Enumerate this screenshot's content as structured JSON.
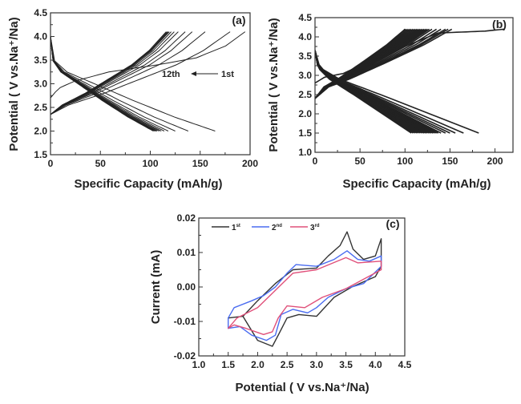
{
  "chart_data": [
    {
      "id": "a",
      "type": "line",
      "panel_label": "(a)",
      "xlabel": "Specific Capacity (mAh/g)",
      "ylabel": "Potential ( V vs.Na⁺/Na)",
      "xlim": [
        0,
        200
      ],
      "ylim": [
        1.5,
        4.5
      ],
      "xticks": [
        0,
        50,
        100,
        150,
        200
      ],
      "yticks": [
        1.5,
        2.0,
        2.5,
        3.0,
        3.5,
        4.0,
        4.5
      ],
      "ytick_format": 1,
      "annotation": {
        "from": "1st",
        "to": "12th"
      },
      "cycles": 12,
      "charge_end_capacity": [
        195,
        180,
        155,
        142,
        135,
        128,
        124,
        121,
        119,
        118,
        117,
        116
      ],
      "discharge_end_capacity": [
        165,
        138,
        125,
        118,
        114,
        111,
        109,
        107,
        106,
        105,
        104,
        103
      ],
      "charge_profile_first": [
        [
          0,
          2.7
        ],
        [
          0.04,
          2.9
        ],
        [
          0.12,
          3.05
        ],
        [
          0.3,
          3.25
        ],
        [
          0.55,
          3.4
        ],
        [
          0.75,
          3.55
        ],
        [
          0.9,
          3.8
        ],
        [
          1,
          4.1
        ]
      ],
      "charge_profile": [
        [
          0,
          2.35
        ],
        [
          0.1,
          2.55
        ],
        [
          0.3,
          2.8
        ],
        [
          0.5,
          3.1
        ],
        [
          0.7,
          3.4
        ],
        [
          0.85,
          3.7
        ],
        [
          1,
          4.1
        ]
      ],
      "discharge_profile": [
        [
          0,
          4.0
        ],
        [
          0.02,
          3.5
        ],
        [
          0.1,
          3.25
        ],
        [
          0.3,
          2.95
        ],
        [
          0.5,
          2.65
        ],
        [
          0.75,
          2.3
        ],
        [
          1,
          2.0
        ]
      ]
    },
    {
      "id": "b",
      "type": "line",
      "panel_label": "(b)",
      "xlabel": "Specific Capacity (mAh/g)",
      "ylabel": "Potential ( V vs.Na⁺/Na)",
      "xlim": [
        0,
        220
      ],
      "ylim": [
        1.0,
        4.5
      ],
      "xticks": [
        0,
        50,
        100,
        150,
        200
      ],
      "yticks": [
        1.0,
        1.5,
        2.0,
        2.5,
        3.0,
        3.5,
        4.0,
        4.5
      ],
      "ytick_format": 1,
      "charge_end_capacity": [
        210,
        152,
        148,
        145,
        140,
        135,
        130,
        127,
        125,
        123,
        121,
        119,
        117,
        115,
        113,
        111,
        109,
        107,
        105,
        103,
        101,
        100
      ],
      "discharge_end_capacity": [
        182,
        165,
        156,
        150,
        145,
        140,
        137,
        135,
        133,
        131,
        129,
        127,
        125,
        123,
        121,
        119,
        117,
        115,
        113,
        111,
        109,
        107
      ],
      "charge_profile_first": [
        [
          0,
          2.8
        ],
        [
          0.05,
          2.95
        ],
        [
          0.15,
          3.05
        ],
        [
          0.35,
          3.5
        ],
        [
          0.55,
          3.9
        ],
        [
          0.65,
          4.1
        ],
        [
          0.9,
          4.15
        ],
        [
          1,
          4.2
        ]
      ],
      "charge_profile": [
        [
          0,
          2.4
        ],
        [
          0.1,
          2.7
        ],
        [
          0.25,
          2.9
        ],
        [
          0.5,
          3.3
        ],
        [
          0.8,
          3.8
        ],
        [
          0.9,
          4.0
        ],
        [
          1,
          4.2
        ]
      ],
      "discharge_profile": [
        [
          0,
          3.65
        ],
        [
          0.03,
          3.2
        ],
        [
          0.15,
          2.9
        ],
        [
          0.4,
          2.5
        ],
        [
          0.7,
          2.0
        ],
        [
          1,
          1.5
        ]
      ]
    },
    {
      "id": "c",
      "type": "line",
      "panel_label": "(c)",
      "xlabel": "Potential ( V vs.Na⁺/Na)",
      "ylabel": "Current (mA)",
      "xlim": [
        1.0,
        4.5
      ],
      "ylim": [
        -0.02,
        0.02
      ],
      "xticks": [
        1.0,
        1.5,
        2.0,
        2.5,
        3.0,
        3.5,
        4.0,
        4.5
      ],
      "yticks": [
        -0.02,
        -0.01,
        0.0,
        0.01,
        0.02
      ],
      "ytick_labels": [
        "-0.02",
        "-0.01",
        "0.00",
        "0.01",
        "0.02"
      ],
      "series": [
        {
          "name": "1",
          "sup": "st",
          "color": "#333333",
          "points": [
            [
              1.5,
              -0.009
            ],
            [
              1.75,
              -0.0085
            ],
            [
              2.0,
              -0.004
            ],
            [
              2.3,
              0.001
            ],
            [
              2.6,
              0.005
            ],
            [
              3.0,
              0.0055
            ],
            [
              3.2,
              0.009
            ],
            [
              3.4,
              0.012
            ],
            [
              3.52,
              0.016
            ],
            [
              3.62,
              0.011
            ],
            [
              3.8,
              0.008
            ],
            [
              4.0,
              0.009
            ],
            [
              4.1,
              0.014
            ],
            [
              4.1,
              0.006
            ],
            [
              4.0,
              0.003
            ],
            [
              3.6,
              0.0
            ],
            [
              3.3,
              -0.003
            ],
            [
              3.0,
              -0.0085
            ],
            [
              2.7,
              -0.008
            ],
            [
              2.5,
              -0.009
            ],
            [
              2.35,
              -0.014
            ],
            [
              2.25,
              -0.0172
            ],
            [
              2.0,
              -0.0155
            ],
            [
              1.75,
              -0.0085
            ],
            [
              1.5,
              -0.009
            ]
          ]
        },
        {
          "name": "2",
          "sup": "nd",
          "color": "#4a6cf0",
          "points": [
            [
              1.5,
              -0.009
            ],
            [
              1.6,
              -0.006
            ],
            [
              1.9,
              -0.004
            ],
            [
              2.1,
              -0.0025
            ],
            [
              2.3,
              0.0
            ],
            [
              2.5,
              0.004
            ],
            [
              2.65,
              0.0065
            ],
            [
              3.0,
              0.006
            ],
            [
              3.3,
              0.008
            ],
            [
              3.52,
              0.0105
            ],
            [
              3.7,
              0.008
            ],
            [
              3.9,
              0.0075
            ],
            [
              4.1,
              0.009
            ],
            [
              4.1,
              0.006
            ],
            [
              3.8,
              0.001
            ],
            [
              3.5,
              -0.0005
            ],
            [
              3.2,
              -0.003
            ],
            [
              3.0,
              -0.006
            ],
            [
              2.85,
              -0.0075
            ],
            [
              2.6,
              -0.0065
            ],
            [
              2.4,
              -0.008
            ],
            [
              2.3,
              -0.014
            ],
            [
              2.15,
              -0.0155
            ],
            [
              1.9,
              -0.014
            ],
            [
              1.7,
              -0.0115
            ],
            [
              1.5,
              -0.012
            ]
          ]
        },
        {
          "name": "3",
          "sup": "rd",
          "color": "#e0507a",
          "points": [
            [
              1.5,
              -0.012
            ],
            [
              1.65,
              -0.009
            ],
            [
              2.0,
              -0.006
            ],
            [
              2.3,
              -0.001
            ],
            [
              2.6,
              0.004
            ],
            [
              3.0,
              0.005
            ],
            [
              3.5,
              0.0085
            ],
            [
              3.7,
              0.007
            ],
            [
              4.1,
              0.0075
            ],
            [
              4.1,
              0.005
            ],
            [
              3.5,
              -0.0005
            ],
            [
              3.1,
              -0.003
            ],
            [
              2.8,
              -0.006
            ],
            [
              2.5,
              -0.0055
            ],
            [
              2.35,
              -0.009
            ],
            [
              2.25,
              -0.013
            ],
            [
              2.1,
              -0.0138
            ],
            [
              1.8,
              -0.012
            ],
            [
              1.6,
              -0.011
            ],
            [
              1.5,
              -0.012
            ]
          ]
        }
      ]
    }
  ]
}
